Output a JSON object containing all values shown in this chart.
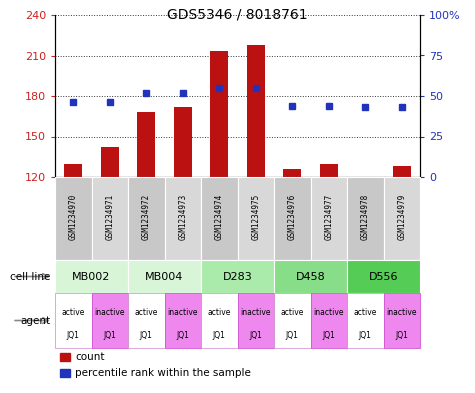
{
  "title": "GDS5346 / 8018761",
  "samples": [
    "GSM1234970",
    "GSM1234971",
    "GSM1234972",
    "GSM1234973",
    "GSM1234974",
    "GSM1234975",
    "GSM1234976",
    "GSM1234977",
    "GSM1234978",
    "GSM1234979"
  ],
  "counts": [
    130,
    142,
    168,
    172,
    213,
    218,
    126,
    130,
    119,
    128
  ],
  "percentile_ranks": [
    46,
    46,
    52,
    52,
    55,
    55,
    44,
    44,
    43,
    43
  ],
  "ylim_left": [
    120,
    240
  ],
  "ylim_right": [
    0,
    100
  ],
  "yticks_left": [
    120,
    150,
    180,
    210,
    240
  ],
  "yticks_right": [
    0,
    25,
    50,
    75,
    100
  ],
  "ytick_labels_left": [
    "120",
    "150",
    "180",
    "210",
    "240"
  ],
  "ytick_labels_right": [
    "0",
    "25",
    "50",
    "75",
    "100%"
  ],
  "cell_lines": [
    {
      "name": "MB002",
      "span": [
        0,
        2
      ],
      "color": "#d8f5d8"
    },
    {
      "name": "MB004",
      "span": [
        2,
        4
      ],
      "color": "#d8f5d8"
    },
    {
      "name": "D283",
      "span": [
        4,
        6
      ],
      "color": "#aaeaaa"
    },
    {
      "name": "D458",
      "span": [
        6,
        8
      ],
      "color": "#88dd88"
    },
    {
      "name": "D556",
      "span": [
        8,
        10
      ],
      "color": "#55cc55"
    }
  ],
  "agents": [
    {
      "label": "active\nJQ1",
      "color": "#ffffff",
      "border": "#cc88cc"
    },
    {
      "label": "inactive\nJQ1",
      "color": "#ee88ee",
      "border": "#cc44cc"
    },
    {
      "label": "active\nJQ1",
      "color": "#ffffff",
      "border": "#cc88cc"
    },
    {
      "label": "inactive\nJQ1",
      "color": "#ee88ee",
      "border": "#cc44cc"
    },
    {
      "label": "active\nJQ1",
      "color": "#ffffff",
      "border": "#cc88cc"
    },
    {
      "label": "inactive\nJQ1",
      "color": "#ee88ee",
      "border": "#cc44cc"
    },
    {
      "label": "active\nJQ1",
      "color": "#ffffff",
      "border": "#cc88cc"
    },
    {
      "label": "inactive\nJQ1",
      "color": "#ee88ee",
      "border": "#cc44cc"
    },
    {
      "label": "active\nJQ1",
      "color": "#ffffff",
      "border": "#cc88cc"
    },
    {
      "label": "inactive\nJQ1",
      "color": "#ee88ee",
      "border": "#cc44cc"
    }
  ],
  "bar_color": "#bb1111",
  "dot_color": "#2233bb",
  "grid_color": "#333333",
  "left_color": "#cc2222",
  "right_color": "#2233bb",
  "bar_width": 0.5,
  "sample_bg": "#cccccc",
  "legend_items": [
    {
      "color": "#bb1111",
      "label": "count"
    },
    {
      "color": "#2233bb",
      "label": "percentile rank within the sample"
    }
  ]
}
